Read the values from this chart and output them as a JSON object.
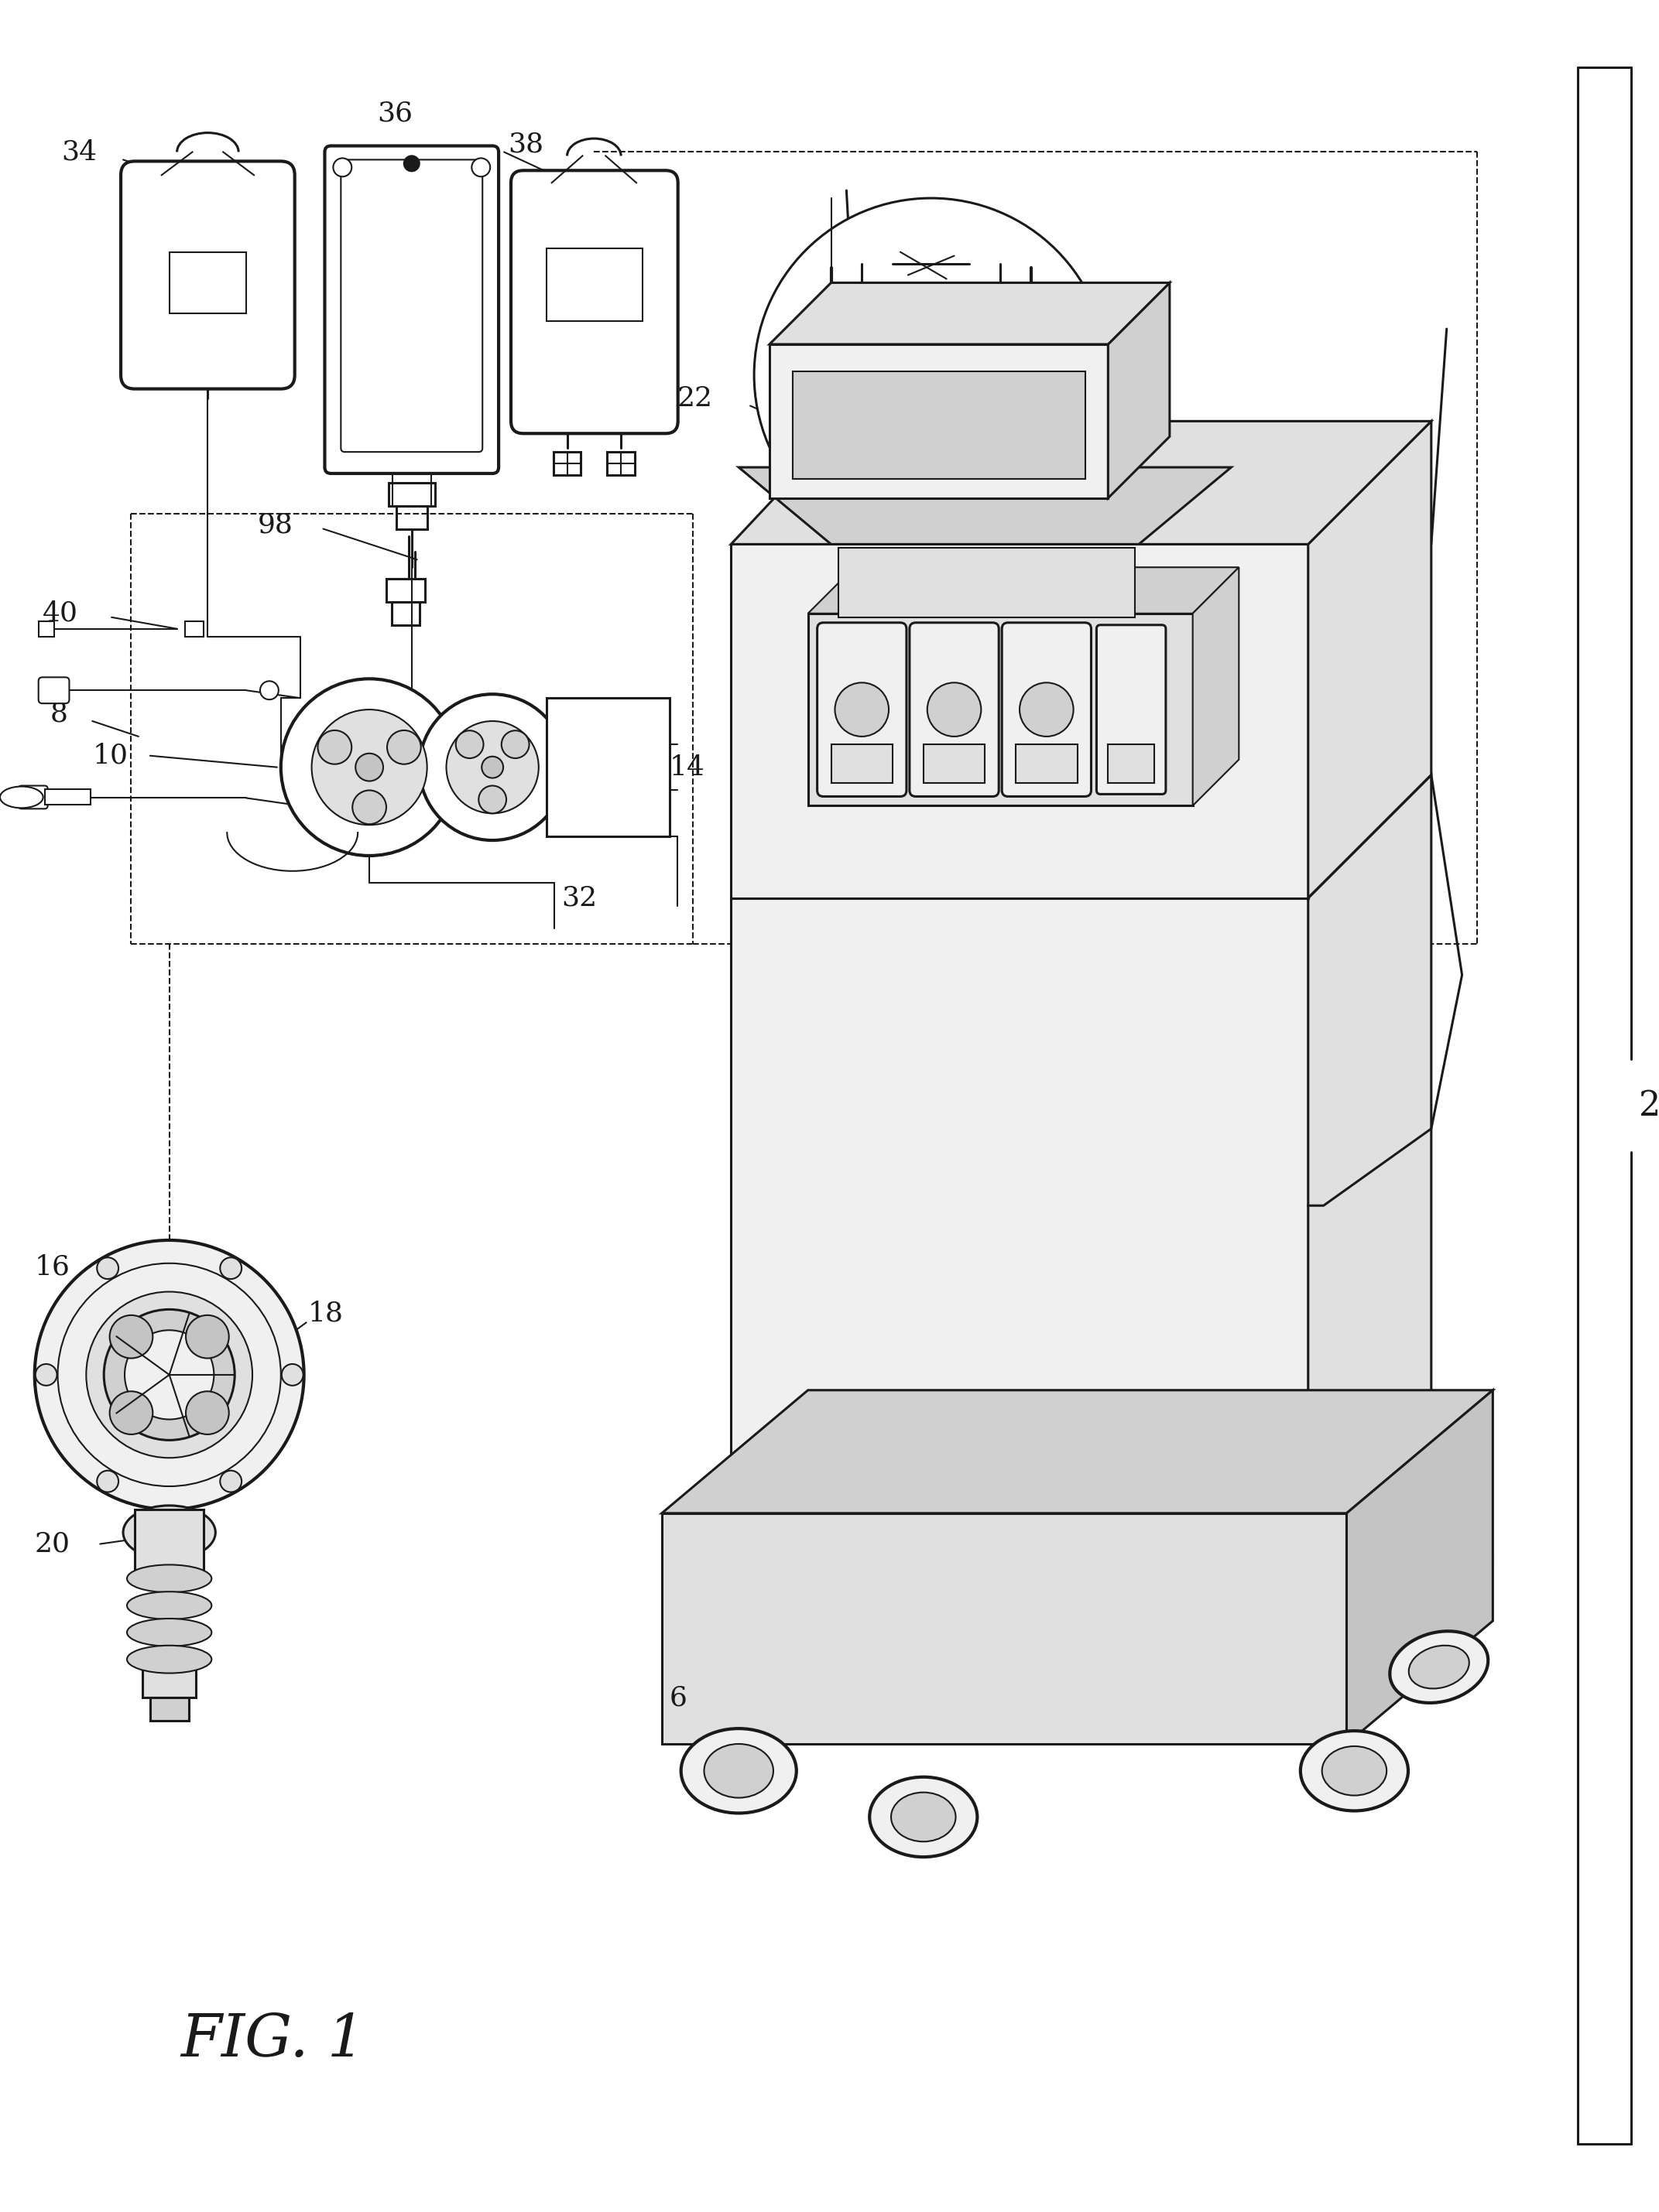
{
  "bg_color": "#ffffff",
  "line_color": "#1a1a1a",
  "fig_width": 21.43,
  "fig_height": 28.59,
  "fig1_text": "FIG. 1",
  "lw_thin": 1.5,
  "lw_med": 2.2,
  "lw_thick": 3.0,
  "shade1": "#f0f0f0",
  "shade2": "#e0e0e0",
  "shade3": "#d0d0d0",
  "shade4": "#c4c4c4",
  "shade5": "#b8b8b8"
}
